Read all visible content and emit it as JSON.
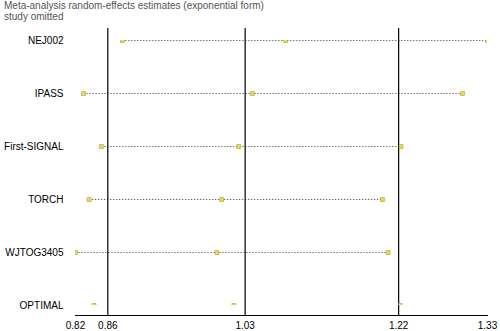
{
  "chart_data": {
    "type": "forest",
    "title": "Meta-analysis random-effects estimates (exponential form)",
    "subtitle": "study omitted",
    "categories": [
      "NEJ002",
      "IPASS",
      "First-SIGNAL",
      "TORCH",
      "WJTOG3405",
      "OPTIMAL"
    ],
    "values": [
      1.08,
      1.039,
      1.022,
      1.001,
      0.995,
      1.016
    ],
    "lower": [
      0.878,
      0.83,
      0.852,
      0.837,
      0.82,
      0.843
    ],
    "upper": [
      1.33,
      1.299,
      1.223,
      1.2,
      1.207,
      1.222
    ],
    "reference_lines": [
      0.86,
      1.03,
      1.22
    ],
    "xlim": [
      0.82,
      1.33
    ],
    "xticks": [
      0.82,
      0.86,
      1.03,
      1.22,
      1.33
    ],
    "color": "#e8e05a",
    "marker": "square",
    "line_style": "dotted"
  }
}
